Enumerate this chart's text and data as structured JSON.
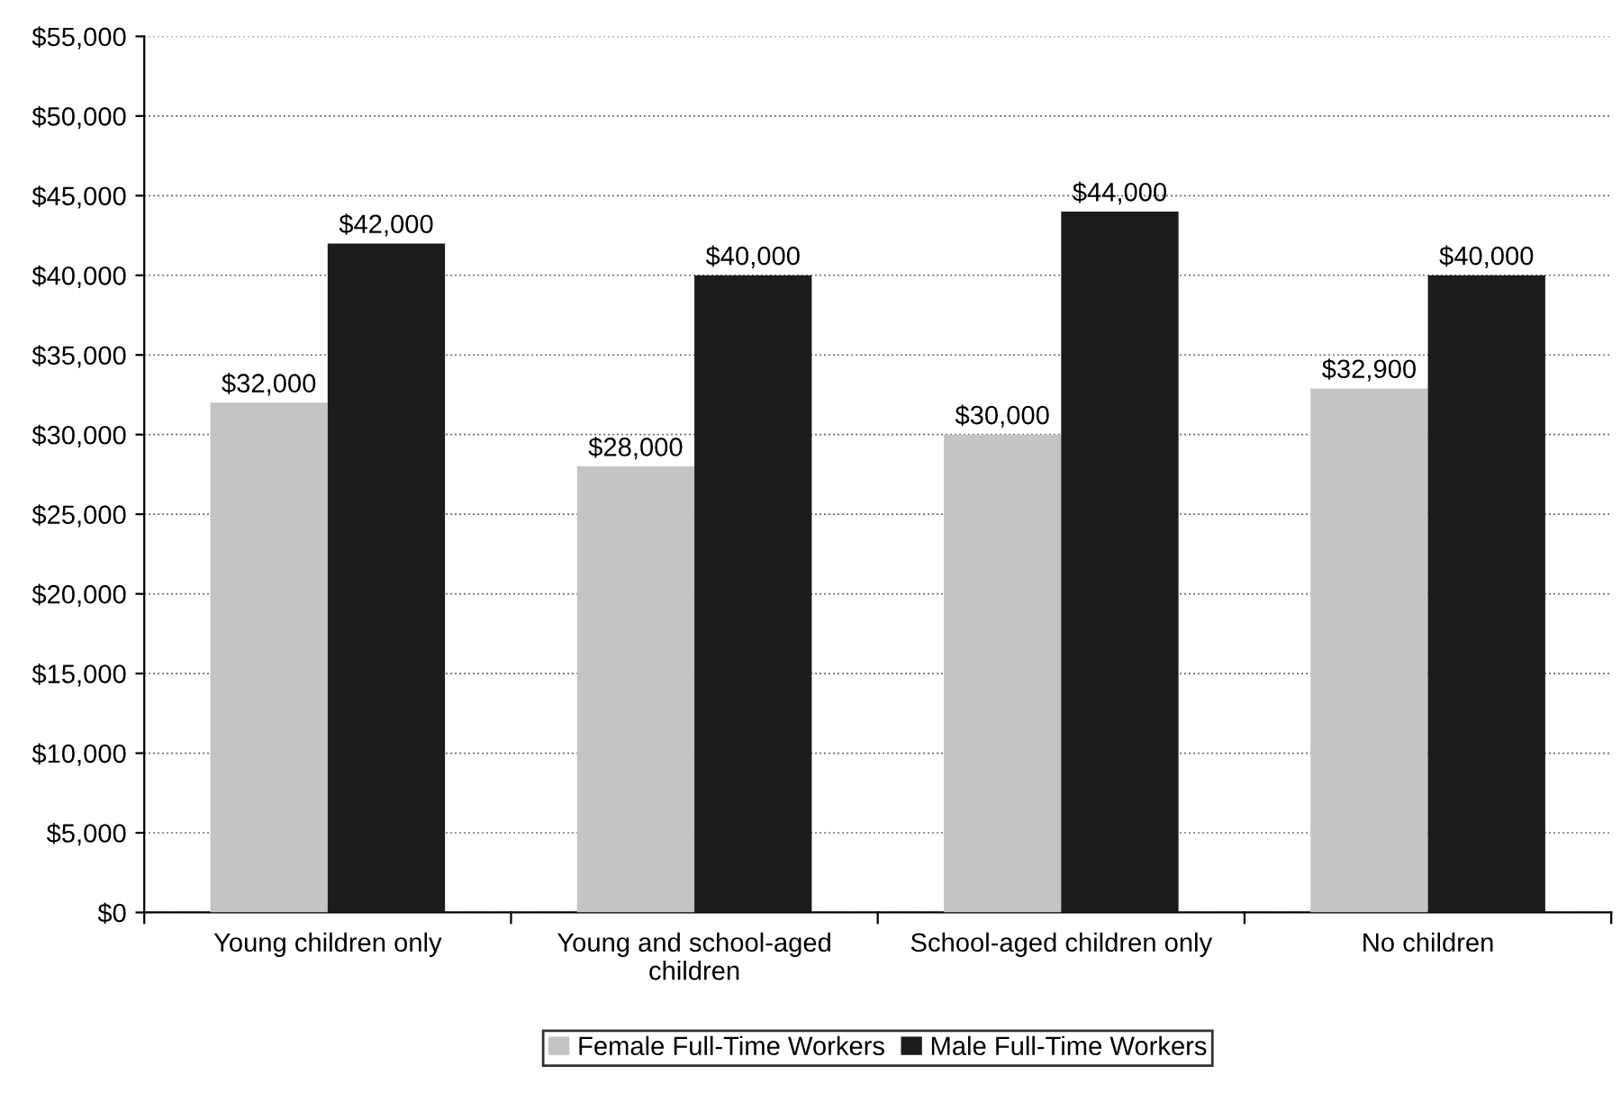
{
  "chart_data": {
    "type": "bar",
    "categories": [
      "Young children only",
      "Young and school-aged\nchildren",
      "School-aged children only",
      "No children"
    ],
    "series": [
      {
        "name": "Female Full-Time Workers",
        "color": "#c4c4c4",
        "values": [
          32000,
          28000,
          30000,
          32900
        ],
        "value_labels": [
          "$32,000",
          "$28,000",
          "$30,000",
          "$32,900"
        ]
      },
      {
        "name": "Male Full-Time Workers",
        "color": "#1c1c1c",
        "values": [
          42000,
          40000,
          44000,
          40000
        ],
        "value_labels": [
          "$42,000",
          "$40,000",
          "$44,000",
          "$40,000"
        ]
      }
    ],
    "ylim": [
      0,
      55000
    ],
    "yticks": [
      {
        "value": 0,
        "label": "$0"
      },
      {
        "value": 5000,
        "label": "$5,000"
      },
      {
        "value": 10000,
        "label": "$10,000"
      },
      {
        "value": 15000,
        "label": "$15,000"
      },
      {
        "value": 20000,
        "label": "$20,000"
      },
      {
        "value": 25000,
        "label": "$25,000"
      },
      {
        "value": 30000,
        "label": "$30,000"
      },
      {
        "value": 35000,
        "label": "$35,000"
      },
      {
        "value": 40000,
        "label": "$40,000"
      },
      {
        "value": 45000,
        "label": "$45,000"
      },
      {
        "value": 50000,
        "label": "$50,000"
      },
      {
        "value": 55000,
        "label": "$55,000"
      }
    ],
    "grid": "y",
    "legend": "bottom"
  }
}
